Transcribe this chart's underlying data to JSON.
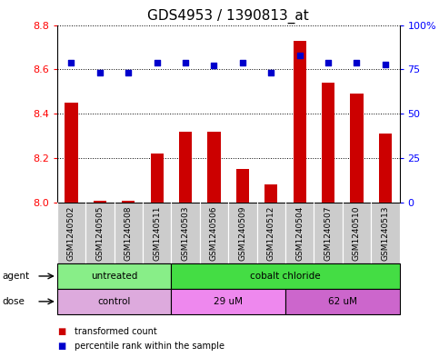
{
  "title": "GDS4953 / 1390813_at",
  "samples": [
    "GSM1240502",
    "GSM1240505",
    "GSM1240508",
    "GSM1240511",
    "GSM1240503",
    "GSM1240506",
    "GSM1240509",
    "GSM1240512",
    "GSM1240504",
    "GSM1240507",
    "GSM1240510",
    "GSM1240513"
  ],
  "transformed_count": [
    8.45,
    8.01,
    8.01,
    8.22,
    8.32,
    8.32,
    8.15,
    8.08,
    8.73,
    8.54,
    8.49,
    8.31
  ],
  "percentile_rank": [
    79,
    73,
    73,
    79,
    79,
    77,
    79,
    73,
    83,
    79,
    79,
    78
  ],
  "ylim_left": [
    8.0,
    8.8
  ],
  "ylim_right": [
    0,
    100
  ],
  "yticks_left": [
    8.0,
    8.2,
    8.4,
    8.6,
    8.8
  ],
  "yticks_right": [
    0,
    25,
    50,
    75,
    100
  ],
  "bar_color": "#cc0000",
  "dot_color": "#0000cc",
  "agent_groups": [
    {
      "label": "untreated",
      "start": 0,
      "end": 3,
      "color": "#88ee88"
    },
    {
      "label": "cobalt chloride",
      "start": 4,
      "end": 11,
      "color": "#44dd44"
    }
  ],
  "dose_groups": [
    {
      "label": "control",
      "start": 0,
      "end": 3,
      "color": "#ddaadd"
    },
    {
      "label": "29 uM",
      "start": 4,
      "end": 7,
      "color": "#ee88ee"
    },
    {
      "label": "62 uM",
      "start": 8,
      "end": 11,
      "color": "#cc66cc"
    }
  ],
  "legend_bar_label": "transformed count",
  "legend_dot_label": "percentile rank within the sample",
  "agent_label": "agent",
  "dose_label": "dose",
  "sample_bg_color": "#cccccc",
  "tick_label_fontsize": 8,
  "sample_label_fontsize": 6.5,
  "title_fontsize": 11,
  "bar_width": 0.45
}
